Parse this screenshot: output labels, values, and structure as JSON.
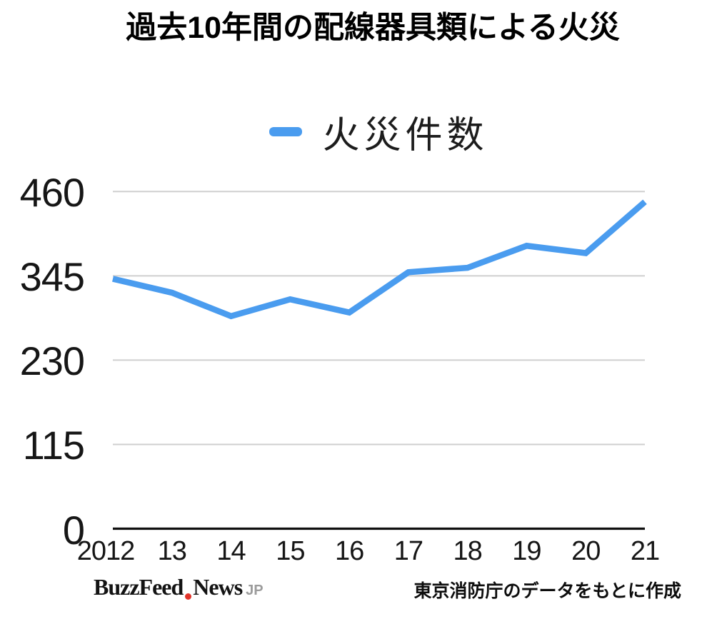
{
  "title": "過去10年間の配線器具類による火災",
  "chart_data": {
    "type": "line",
    "title": "過去10年間の配線器具類による火災",
    "categories": [
      "2012",
      "13",
      "14",
      "15",
      "16",
      "17",
      "18",
      "19",
      "20",
      "21"
    ],
    "series": [
      {
        "name": "火災件数",
        "values": [
          341,
          322,
          290,
          313,
          295,
          350,
          356,
          386,
          376,
          446
        ],
        "color": "#4A9CEF"
      }
    ],
    "xlabel": "",
    "ylabel": "",
    "ylim": [
      0,
      460
    ],
    "yticks": [
      0,
      115,
      230,
      345,
      460
    ],
    "grid": true,
    "legend_position": "top-center",
    "gridline_color": "#CFCFCF",
    "axis_color": "#0f0f0f",
    "tick_label_color": "#161616"
  },
  "legend": {
    "label": "火災件数",
    "swatch_color": "#4A9CEF"
  },
  "footer": {
    "logo_part1": "BuzzFeed",
    "logo_part2": "News",
    "logo_suffix": "JP",
    "logo_dot_color": "#E2342A",
    "attribution": "東京消防庁のデータをもとに作成"
  }
}
